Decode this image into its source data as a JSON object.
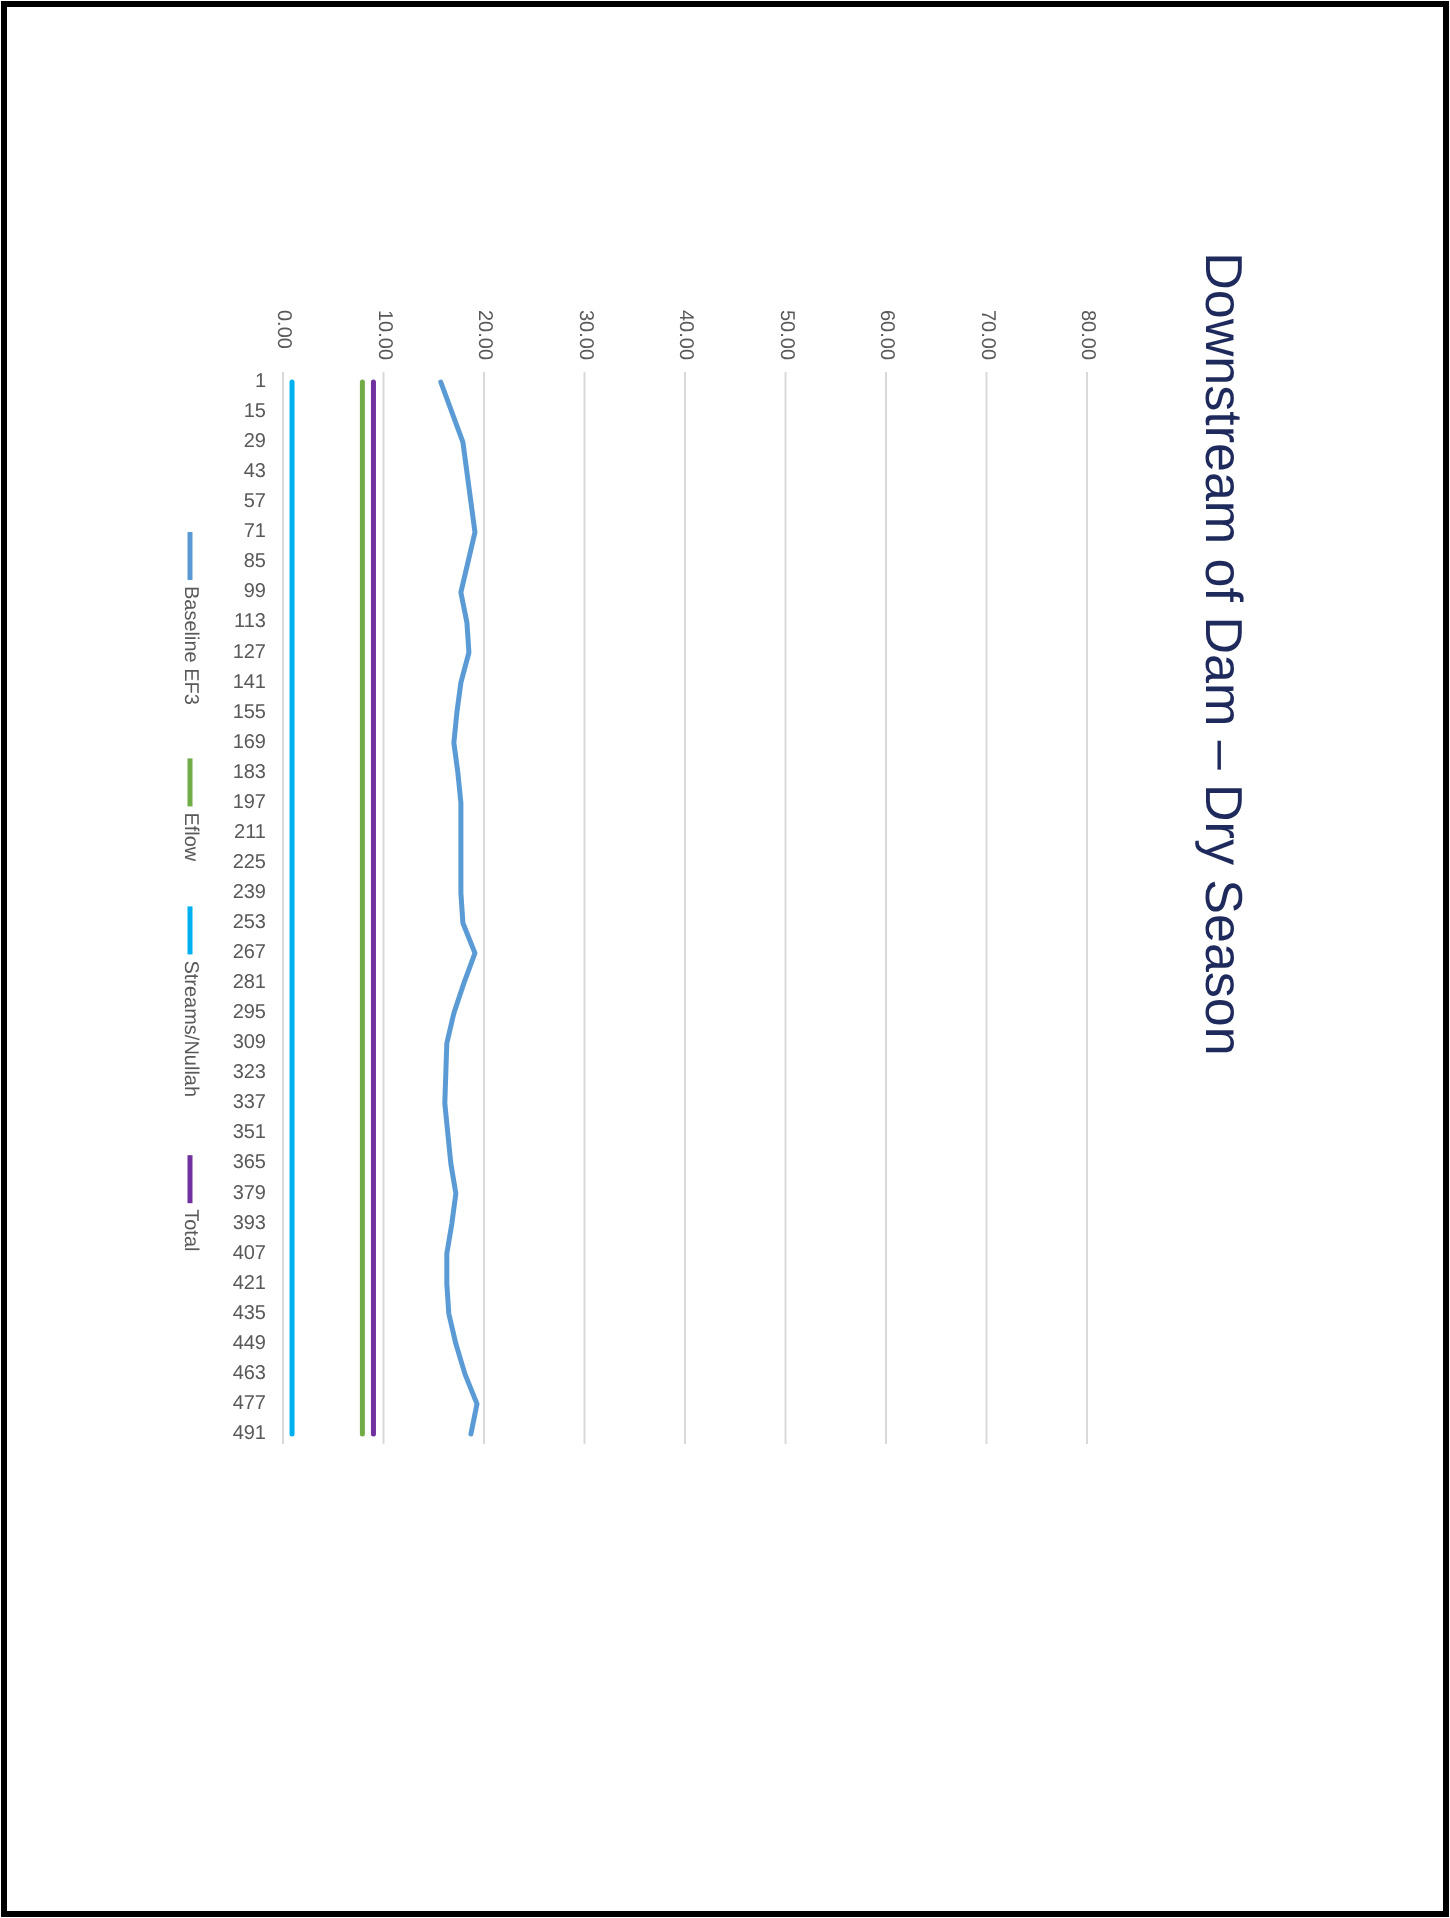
{
  "chart_data": {
    "type": "line",
    "title": "Downstream of Dam – Dry Season",
    "orientation": "horizontal",
    "categories": [
      "1",
      "15",
      "29",
      "43",
      "57",
      "71",
      "85",
      "99",
      "113",
      "127",
      "141",
      "155",
      "169",
      "183",
      "197",
      "211",
      "225",
      "239",
      "253",
      "267",
      "281",
      "295",
      "309",
      "323",
      "337",
      "351",
      "365",
      "379",
      "393",
      "407",
      "421",
      "435",
      "449",
      "463",
      "477",
      "491"
    ],
    "xlim": [
      0,
      80
    ],
    "xticks": [
      {
        "value": 0,
        "label": "0.00"
      },
      {
        "value": 10,
        "label": "10.00"
      },
      {
        "value": 20,
        "label": "20.00"
      },
      {
        "value": 30,
        "label": "30.00"
      },
      {
        "value": 40,
        "label": "40.00"
      },
      {
        "value": 50,
        "label": "50.00"
      },
      {
        "value": 60,
        "label": "60.00"
      },
      {
        "value": 70,
        "label": "70.00"
      },
      {
        "value": 80,
        "label": "80.00"
      }
    ],
    "grid": "x",
    "legend": "left",
    "series": [
      {
        "name": "Baseline EF3",
        "color": "#5b9bd5",
        "values": [
          15.7,
          16.8,
          17.9,
          18.3,
          18.7,
          19.1,
          18.4,
          17.7,
          18.3,
          18.5,
          17.7,
          17.3,
          17.0,
          17.4,
          17.7,
          17.7,
          17.7,
          17.7,
          17.9,
          19.1,
          18.0,
          17.0,
          16.3,
          16.2,
          16.1,
          16.4,
          16.7,
          17.2,
          16.8,
          16.3,
          16.3,
          16.5,
          17.2,
          18.1,
          19.3,
          18.7
        ]
      },
      {
        "name": "Eflow",
        "color": "#70ad47",
        "values": [
          7.9,
          7.9,
          7.9,
          7.9,
          7.9,
          7.9,
          7.9,
          7.9,
          7.9,
          7.9,
          7.9,
          7.9,
          7.9,
          7.9,
          7.9,
          7.9,
          7.9,
          7.9,
          7.9,
          7.9,
          7.9,
          7.9,
          7.9,
          7.9,
          7.9,
          7.9,
          7.9,
          7.9,
          7.9,
          7.9,
          7.9,
          7.9,
          7.9,
          7.9,
          7.9,
          7.9
        ]
      },
      {
        "name": "Streams/Nullah",
        "color": "#00b0f0",
        "values": [
          0.9,
          0.9,
          0.9,
          0.9,
          0.9,
          0.9,
          0.9,
          0.9,
          0.9,
          0.9,
          0.9,
          0.9,
          0.9,
          0.9,
          0.9,
          0.9,
          0.9,
          0.9,
          0.9,
          0.9,
          0.9,
          0.9,
          0.9,
          0.9,
          0.9,
          0.9,
          0.9,
          0.9,
          0.9,
          0.9,
          0.9,
          0.9,
          0.9,
          0.9,
          0.9,
          0.9
        ]
      },
      {
        "name": "Total",
        "color": "#7030a0",
        "values": [
          9.0,
          9.0,
          9.0,
          9.0,
          9.0,
          9.0,
          9.0,
          9.0,
          9.0,
          9.0,
          9.0,
          9.0,
          9.0,
          9.0,
          9.0,
          9.0,
          9.0,
          9.0,
          9.0,
          9.0,
          9.0,
          9.0,
          9.0,
          9.0,
          9.0,
          9.0,
          9.0,
          9.0,
          9.0,
          9.0,
          9.0,
          9.0,
          9.0,
          9.0,
          9.0,
          9.0
        ]
      }
    ]
  }
}
